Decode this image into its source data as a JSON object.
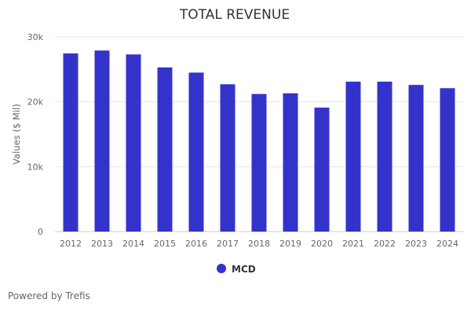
{
  "chart_data": {
    "type": "bar",
    "title": "TOTAL REVENUE",
    "xlabel": "",
    "ylabel": "Values ($ Mil)",
    "categories": [
      "2012",
      "2013",
      "2014",
      "2015",
      "2016",
      "2017",
      "2018",
      "2019",
      "2020",
      "2021",
      "2022",
      "2023",
      "2024"
    ],
    "series": [
      {
        "name": "MCD",
        "color": "#3333cc",
        "values": [
          27450,
          27900,
          27300,
          25300,
          24500,
          22700,
          21200,
          21300,
          19100,
          23100,
          23100,
          22600,
          22100
        ]
      }
    ],
    "ylim": [
      0,
      30000
    ],
    "yticks": [
      0,
      10000,
      20000,
      30000
    ],
    "ytick_labels": [
      "0",
      "10k",
      "20k",
      "30k"
    ],
    "grid": true,
    "legend": "bottom-center"
  },
  "footer": "Powered by Trefis"
}
